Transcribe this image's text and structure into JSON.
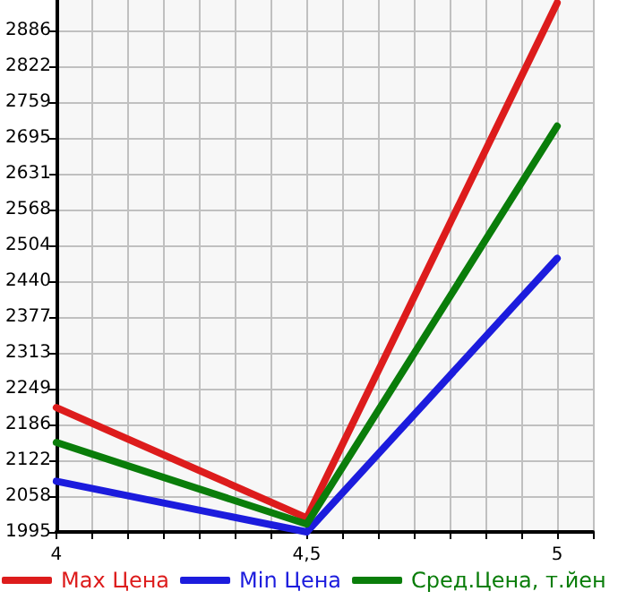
{
  "chart_data": {
    "type": "line",
    "x": [
      4,
      4.5,
      5
    ],
    "series": [
      {
        "name": "Max Цена",
        "color": "#dd1c1c",
        "values": [
          2216,
          2020,
          2935
        ]
      },
      {
        "name": "Min Цена",
        "color": "#1c1cdd",
        "values": [
          2085,
          1995,
          2481
        ]
      },
      {
        "name": "Сред.Цена, т.йен",
        "color": "#0a7d0a",
        "values": [
          2154,
          2009,
          2716
        ]
      }
    ],
    "xlim": [
      4,
      5.0714
    ],
    "xticks": [
      4,
      {
        "value": 4.0714,
        "label": null
      },
      {
        "value": 4.1429,
        "label": null
      },
      {
        "value": 4.2143,
        "label": null
      },
      {
        "value": 4.2857,
        "label": null
      },
      {
        "value": 4.3571,
        "label": null
      },
      {
        "value": 4.4286,
        "label": null
      },
      {
        "value": 4.5,
        "label": "4,5"
      },
      {
        "value": 4.5714,
        "label": null
      },
      {
        "value": 4.6429,
        "label": null
      },
      {
        "value": 4.7143,
        "label": null
      },
      {
        "value": 4.7857,
        "label": null
      },
      {
        "value": 4.8571,
        "label": null
      },
      {
        "value": 4.9286,
        "label": null
      },
      5,
      {
        "value": 5.0714,
        "label": null
      }
    ],
    "ylim": [
      1995,
      2940
    ],
    "yticks": [
      1995,
      2058,
      2122,
      2186,
      2249,
      2313,
      2377,
      2440,
      2504,
      2568,
      2631,
      2695,
      2759,
      2822,
      2886
    ],
    "grid": true,
    "legend": "bottom",
    "marker": "none",
    "line_style": "solid"
  }
}
